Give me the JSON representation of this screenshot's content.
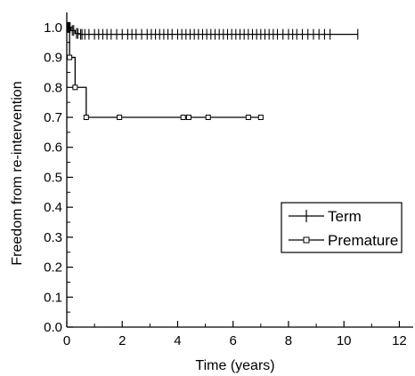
{
  "chart_data": {
    "type": "line",
    "step": true,
    "title": "",
    "xlabel": "Time (years)",
    "ylabel": "Freedom from re-intervention",
    "xlim": [
      0,
      12.5
    ],
    "ylim": [
      0,
      1.05
    ],
    "xticks": [
      0,
      2,
      4,
      6,
      8,
      10,
      12
    ],
    "yticks": [
      0.0,
      0.1,
      0.2,
      0.3,
      0.4,
      0.5,
      0.6,
      0.7,
      0.8,
      0.9,
      1.0
    ],
    "xtick_labels": [
      "0",
      "2",
      "4",
      "6",
      "8",
      "10",
      "12"
    ],
    "ytick_labels": [
      "0.0",
      "0.1",
      "0.2",
      "0.3",
      "0.4",
      "0.5",
      "0.6",
      "0.7",
      "0.8",
      "0.9",
      "1.0"
    ],
    "grid": false,
    "legend_position": "right",
    "series": [
      {
        "name": "Term",
        "marker": "plus",
        "color": "#000000",
        "steps": [
          [
            0,
            1.0
          ],
          [
            0.15,
            0.99
          ],
          [
            0.3,
            0.98
          ],
          [
            0.45,
            0.977
          ]
        ],
        "end_x": 10.5,
        "censor_x": [
          0.03,
          0.06,
          0.09,
          0.12,
          0.2,
          0.25,
          0.35,
          0.4,
          0.5,
          0.55,
          0.65,
          0.8,
          1.0,
          1.15,
          1.3,
          1.45,
          1.6,
          1.8,
          2.0,
          2.2,
          2.35,
          2.5,
          2.7,
          2.9,
          3.05,
          3.2,
          3.35,
          3.5,
          3.65,
          3.8,
          4.0,
          4.15,
          4.3,
          4.45,
          4.6,
          4.75,
          4.9,
          5.05,
          5.2,
          5.35,
          5.5,
          5.65,
          5.8,
          5.95,
          6.1,
          6.25,
          6.4,
          6.55,
          6.7,
          6.85,
          7.0,
          7.15,
          7.3,
          7.45,
          7.6,
          7.8,
          8.0,
          8.15,
          8.3,
          8.5,
          8.7,
          8.9,
          9.1,
          9.3,
          9.5,
          10.5
        ]
      },
      {
        "name": "Premature",
        "marker": "square",
        "color": "#000000",
        "steps": [
          [
            0,
            1.0
          ],
          [
            0.1,
            0.9
          ],
          [
            0.3,
            0.8
          ],
          [
            0.7,
            0.7
          ]
        ],
        "end_x": 7.1,
        "censor_x": [
          0.1,
          0.3,
          0.7,
          1.9,
          4.2,
          4.4,
          5.1,
          6.55,
          7.0
        ]
      }
    ]
  }
}
